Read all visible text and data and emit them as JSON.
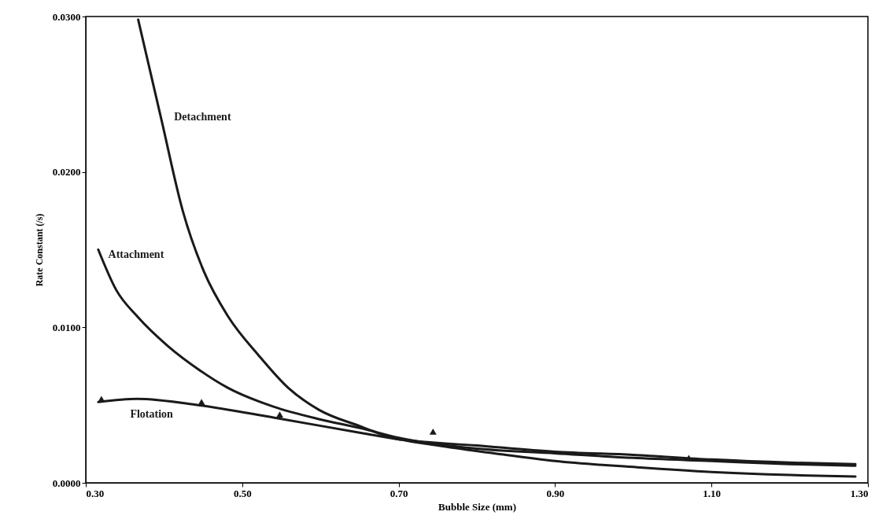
{
  "chart_data": {
    "type": "line",
    "xlabel": "Bubble Size (mm)",
    "ylabel": "Rate Constant (/s)",
    "xlim": [
      0.3,
      1.3
    ],
    "ylim": [
      0,
      0.03
    ],
    "xticks": [
      {
        "value": 0.3,
        "label": "0.30"
      },
      {
        "value": 0.5,
        "label": "0.50"
      },
      {
        "value": 0.7,
        "label": "0.70"
      },
      {
        "value": 0.9,
        "label": "0.90"
      },
      {
        "value": 1.1,
        "label": "1.10"
      },
      {
        "value": 1.3,
        "label": "1.30"
      }
    ],
    "yticks": [
      {
        "value": 0,
        "label": "0.0000"
      },
      {
        "value": 0.01,
        "label": "0.0100"
      },
      {
        "value": 0.02,
        "label": "0.0200"
      },
      {
        "value": 0.03,
        "label": "0.0300"
      }
    ],
    "grid": false,
    "marker": "none",
    "line_style": "solid",
    "series": [
      {
        "name": "Detachment",
        "color": "#1a1a1a",
        "x": [
          0.367,
          0.397,
          0.424,
          0.451,
          0.482,
          0.521,
          0.559,
          0.598,
          0.653,
          0.685,
          0.75,
          0.822,
          0.9,
          1.005,
          1.1,
          1.2,
          1.284
        ],
        "values": [
          0.0298,
          0.0233,
          0.0175,
          0.0136,
          0.0107,
          0.0082,
          0.0061,
          0.0047,
          0.0036,
          0.003,
          0.0024,
          0.0019,
          0.0014,
          0.001,
          0.0007,
          0.0005,
          0.0004
        ]
      },
      {
        "name": "Attachment",
        "color": "#1a1a1a",
        "x": [
          0.316,
          0.339,
          0.366,
          0.405,
          0.444,
          0.482,
          0.54,
          0.598,
          0.653,
          0.7,
          0.8,
          0.9,
          1.0,
          1.1,
          1.2,
          1.284
        ],
        "values": [
          0.015,
          0.0124,
          0.0107,
          0.0088,
          0.0073,
          0.0061,
          0.0049,
          0.0041,
          0.0035,
          0.0029,
          0.0022,
          0.0019,
          0.0016,
          0.0014,
          0.0012,
          0.0011
        ]
      },
      {
        "name": "Flotation",
        "color": "#1a1a1a",
        "x": [
          0.316,
          0.366,
          0.444,
          0.54,
          0.653,
          0.7,
          0.8,
          0.9,
          1.0,
          1.1,
          1.2,
          1.284
        ],
        "values": [
          0.0052,
          0.0054,
          0.005,
          0.0042,
          0.0032,
          0.0028,
          0.0024,
          0.002,
          0.0018,
          0.0015,
          0.0013,
          0.0012
        ]
      },
      {
        "type": "scatter",
        "color": "#1a1a1a",
        "marker": "triangle",
        "x": [
          0.32,
          0.448,
          0.548,
          0.744,
          1.071
        ],
        "values": [
          0.0054,
          0.0052,
          0.0044,
          0.0033,
          0.0016
        ]
      }
    ]
  }
}
